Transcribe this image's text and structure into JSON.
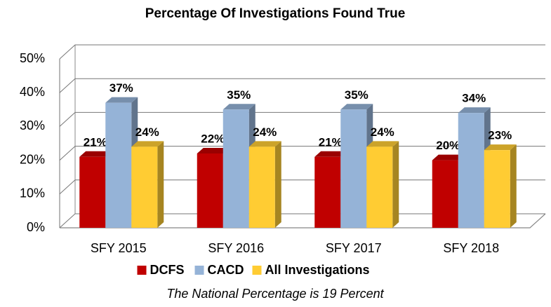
{
  "chart_data": {
    "type": "bar3d",
    "title": "Percentage Of Investigations Found True",
    "categories": [
      "SFY 2015",
      "SFY 2016",
      "SFY 2017",
      "SFY 2018"
    ],
    "series": [
      {
        "name": "DCFS",
        "color": "#c00000",
        "values": [
          21,
          22,
          21,
          20
        ],
        "value_labels": [
          "21%",
          "22%",
          "21%",
          "20%"
        ]
      },
      {
        "name": "CACD",
        "color": "#95b3d7",
        "values": [
          37,
          35,
          35,
          34
        ],
        "value_labels": [
          "37%",
          "35%",
          "35%",
          "34%"
        ]
      },
      {
        "name": "All Investigations",
        "color": "#ffcc33",
        "values": [
          24,
          24,
          24,
          23
        ],
        "value_labels": [
          "24%",
          "24%",
          "24%",
          "23%"
        ]
      }
    ],
    "ylim": [
      0,
      50
    ],
    "yticks": [
      {
        "value": 0,
        "label": "0%"
      },
      {
        "value": 10,
        "label": "10%"
      },
      {
        "value": 20,
        "label": "20%"
      },
      {
        "value": 30,
        "label": "30%"
      },
      {
        "value": 40,
        "label": "40%"
      },
      {
        "value": 50,
        "label": "50%"
      }
    ],
    "grid": true,
    "legend": "bottom",
    "annotation": "The National Percentage is 19 Percent"
  }
}
